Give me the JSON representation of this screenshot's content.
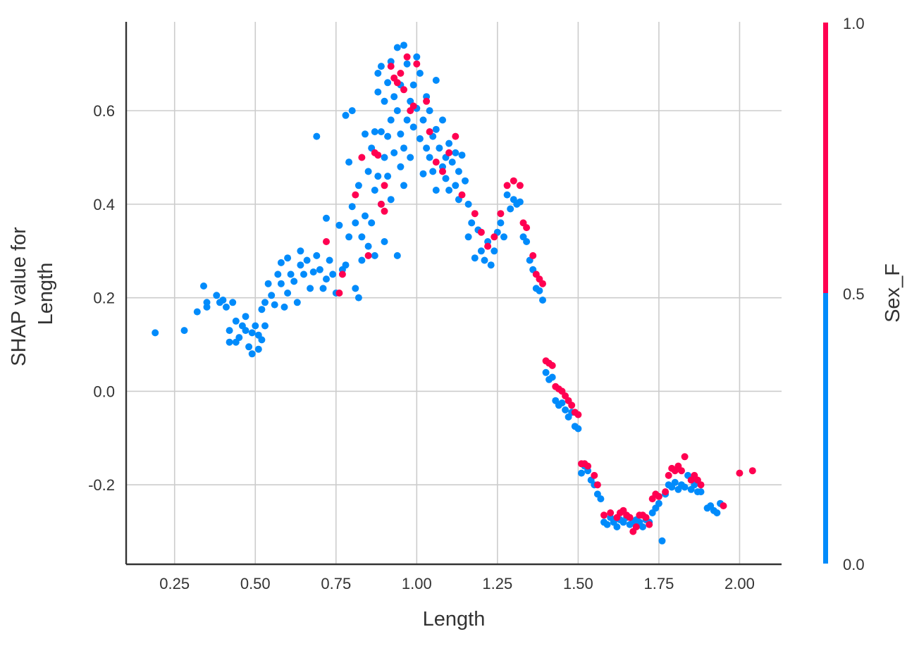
{
  "chart_data": {
    "type": "scatter",
    "title": "",
    "xlabel": "Length",
    "ylabel_lines": [
      "SHAP value for",
      "Length"
    ],
    "xlim": [
      0.1,
      2.13
    ],
    "ylim": [
      -0.37,
      0.79
    ],
    "x_ticks": [
      0.25,
      0.5,
      0.75,
      1.0,
      1.25,
      1.5,
      1.75,
      2.0
    ],
    "x_tick_labels": [
      "0.25",
      "0.50",
      "0.75",
      "1.00",
      "1.25",
      "1.50",
      "1.75",
      "2.00"
    ],
    "y_ticks": [
      0.6,
      0.4,
      0.2,
      0.0,
      -0.2
    ],
    "y_tick_labels": [
      "0.6",
      "0.4",
      "0.2",
      "0.0",
      "-0.2"
    ],
    "grid": true,
    "colorbar": {
      "label": "Sex_F",
      "ticks": [
        "1.0",
        "0.5",
        "0.0"
      ],
      "low_color": "#008bfb",
      "high_color": "#ff0051"
    },
    "series": [
      {
        "color_value": 0,
        "color": "#008bfb",
        "points": [
          [
            0.19,
            0.125
          ],
          [
            0.28,
            0.13
          ],
          [
            0.32,
            0.17
          ],
          [
            0.34,
            0.225
          ],
          [
            0.35,
            0.19
          ],
          [
            0.35,
            0.18
          ],
          [
            0.38,
            0.205
          ],
          [
            0.39,
            0.19
          ],
          [
            0.4,
            0.195
          ],
          [
            0.41,
            0.18
          ],
          [
            0.42,
            0.13
          ],
          [
            0.42,
            0.105
          ],
          [
            0.43,
            0.19
          ],
          [
            0.44,
            0.105
          ],
          [
            0.44,
            0.15
          ],
          [
            0.45,
            0.115
          ],
          [
            0.46,
            0.14
          ],
          [
            0.47,
            0.13
          ],
          [
            0.47,
            0.16
          ],
          [
            0.48,
            0.095
          ],
          [
            0.49,
            0.125
          ],
          [
            0.49,
            0.08
          ],
          [
            0.5,
            0.14
          ],
          [
            0.51,
            0.09
          ],
          [
            0.51,
            0.12
          ],
          [
            0.52,
            0.11
          ],
          [
            0.52,
            0.175
          ],
          [
            0.53,
            0.14
          ],
          [
            0.53,
            0.19
          ],
          [
            0.54,
            0.23
          ],
          [
            0.55,
            0.205
          ],
          [
            0.56,
            0.185
          ],
          [
            0.57,
            0.25
          ],
          [
            0.58,
            0.23
          ],
          [
            0.58,
            0.275
          ],
          [
            0.59,
            0.18
          ],
          [
            0.6,
            0.21
          ],
          [
            0.6,
            0.285
          ],
          [
            0.61,
            0.25
          ],
          [
            0.62,
            0.235
          ],
          [
            0.63,
            0.19
          ],
          [
            0.64,
            0.27
          ],
          [
            0.64,
            0.3
          ],
          [
            0.65,
            0.25
          ],
          [
            0.66,
            0.28
          ],
          [
            0.67,
            0.22
          ],
          [
            0.68,
            0.255
          ],
          [
            0.69,
            0.29
          ],
          [
            0.69,
            0.545
          ],
          [
            0.7,
            0.26
          ],
          [
            0.71,
            0.22
          ],
          [
            0.72,
            0.24
          ],
          [
            0.72,
            0.37
          ],
          [
            0.73,
            0.28
          ],
          [
            0.74,
            0.25
          ],
          [
            0.75,
            0.21
          ],
          [
            0.76,
            0.355
          ],
          [
            0.77,
            0.26
          ],
          [
            0.78,
            0.27
          ],
          [
            0.78,
            0.59
          ],
          [
            0.79,
            0.33
          ],
          [
            0.79,
            0.49
          ],
          [
            0.8,
            0.395
          ],
          [
            0.8,
            0.6
          ],
          [
            0.81,
            0.22
          ],
          [
            0.81,
            0.36
          ],
          [
            0.82,
            0.44
          ],
          [
            0.82,
            0.2
          ],
          [
            0.83,
            0.33
          ],
          [
            0.83,
            0.28
          ],
          [
            0.84,
            0.55
          ],
          [
            0.84,
            0.375
          ],
          [
            0.85,
            0.47
          ],
          [
            0.85,
            0.31
          ],
          [
            0.86,
            0.52
          ],
          [
            0.86,
            0.36
          ],
          [
            0.87,
            0.43
          ],
          [
            0.87,
            0.555
          ],
          [
            0.87,
            0.29
          ],
          [
            0.88,
            0.64
          ],
          [
            0.88,
            0.68
          ],
          [
            0.88,
            0.46
          ],
          [
            0.89,
            0.4
          ],
          [
            0.89,
            0.555
          ],
          [
            0.89,
            0.695
          ],
          [
            0.9,
            0.62
          ],
          [
            0.9,
            0.5
          ],
          [
            0.9,
            0.32
          ],
          [
            0.91,
            0.545
          ],
          [
            0.91,
            0.66
          ],
          [
            0.91,
            0.46
          ],
          [
            0.92,
            0.58
          ],
          [
            0.92,
            0.705
          ],
          [
            0.92,
            0.41
          ],
          [
            0.93,
            0.51
          ],
          [
            0.93,
            0.63
          ],
          [
            0.94,
            0.6
          ],
          [
            0.94,
            0.29
          ],
          [
            0.94,
            0.735
          ],
          [
            0.95,
            0.48
          ],
          [
            0.95,
            0.55
          ],
          [
            0.95,
            0.655
          ],
          [
            0.96,
            0.74
          ],
          [
            0.96,
            0.52
          ],
          [
            0.96,
            0.44
          ],
          [
            0.97,
            0.58
          ],
          [
            0.97,
            0.7
          ],
          [
            0.98,
            0.62
          ],
          [
            0.98,
            0.5
          ],
          [
            0.99,
            0.655
          ],
          [
            0.99,
            0.565
          ],
          [
            1.0,
            0.605
          ],
          [
            1.0,
            0.715
          ],
          [
            1.01,
            0.54
          ],
          [
            1.01,
            0.68
          ],
          [
            1.02,
            0.58
          ],
          [
            1.02,
            0.465
          ],
          [
            1.03,
            0.63
          ],
          [
            1.03,
            0.52
          ],
          [
            1.04,
            0.6
          ],
          [
            1.04,
            0.5
          ],
          [
            1.05,
            0.545
          ],
          [
            1.05,
            0.47
          ],
          [
            1.06,
            0.665
          ],
          [
            1.06,
            0.56
          ],
          [
            1.06,
            0.43
          ],
          [
            1.07,
            0.52
          ],
          [
            1.08,
            0.48
          ],
          [
            1.08,
            0.58
          ],
          [
            1.09,
            0.5
          ],
          [
            1.09,
            0.455
          ],
          [
            1.1,
            0.53
          ],
          [
            1.1,
            0.43
          ],
          [
            1.11,
            0.49
          ],
          [
            1.12,
            0.44
          ],
          [
            1.12,
            0.51
          ],
          [
            1.13,
            0.47
          ],
          [
            1.13,
            0.41
          ],
          [
            1.14,
            0.505
          ],
          [
            1.15,
            0.45
          ],
          [
            1.16,
            0.4
          ],
          [
            1.16,
            0.33
          ],
          [
            1.17,
            0.36
          ],
          [
            1.18,
            0.285
          ],
          [
            1.19,
            0.345
          ],
          [
            1.2,
            0.3
          ],
          [
            1.21,
            0.28
          ],
          [
            1.22,
            0.32
          ],
          [
            1.23,
            0.27
          ],
          [
            1.24,
            0.3
          ],
          [
            1.25,
            0.34
          ],
          [
            1.26,
            0.36
          ],
          [
            1.27,
            0.33
          ],
          [
            1.28,
            0.42
          ],
          [
            1.29,
            0.39
          ],
          [
            1.3,
            0.41
          ],
          [
            1.31,
            0.4
          ],
          [
            1.32,
            0.405
          ],
          [
            1.33,
            0.33
          ],
          [
            1.34,
            0.32
          ],
          [
            1.35,
            0.28
          ],
          [
            1.36,
            0.26
          ],
          [
            1.37,
            0.22
          ],
          [
            1.38,
            0.215
          ],
          [
            1.39,
            0.195
          ],
          [
            1.4,
            0.04
          ],
          [
            1.41,
            0.025
          ],
          [
            1.42,
            0.03
          ],
          [
            1.43,
            -0.02
          ],
          [
            1.44,
            -0.03
          ],
          [
            1.45,
            -0.025
          ],
          [
            1.46,
            -0.04
          ],
          [
            1.47,
            -0.055
          ],
          [
            1.48,
            -0.045
          ],
          [
            1.49,
            -0.075
          ],
          [
            1.5,
            -0.08
          ],
          [
            1.51,
            -0.175
          ],
          [
            1.52,
            -0.16
          ],
          [
            1.53,
            -0.17
          ],
          [
            1.54,
            -0.19
          ],
          [
            1.55,
            -0.2
          ],
          [
            1.56,
            -0.22
          ],
          [
            1.57,
            -0.23
          ],
          [
            1.58,
            -0.28
          ],
          [
            1.59,
            -0.285
          ],
          [
            1.6,
            -0.27
          ],
          [
            1.61,
            -0.28
          ],
          [
            1.62,
            -0.29
          ],
          [
            1.63,
            -0.275
          ],
          [
            1.64,
            -0.28
          ],
          [
            1.65,
            -0.27
          ],
          [
            1.66,
            -0.285
          ],
          [
            1.67,
            -0.28
          ],
          [
            1.68,
            -0.275
          ],
          [
            1.69,
            -0.28
          ],
          [
            1.7,
            -0.29
          ],
          [
            1.71,
            -0.275
          ],
          [
            1.72,
            -0.28
          ],
          [
            1.73,
            -0.26
          ],
          [
            1.74,
            -0.25
          ],
          [
            1.75,
            -0.24
          ],
          [
            1.76,
            -0.32
          ],
          [
            1.77,
            -0.22
          ],
          [
            1.78,
            -0.2
          ],
          [
            1.79,
            -0.205
          ],
          [
            1.8,
            -0.195
          ],
          [
            1.81,
            -0.21
          ],
          [
            1.82,
            -0.2
          ],
          [
            1.83,
            -0.205
          ],
          [
            1.84,
            -0.18
          ],
          [
            1.85,
            -0.21
          ],
          [
            1.86,
            -0.2
          ],
          [
            1.87,
            -0.215
          ],
          [
            1.88,
            -0.215
          ],
          [
            1.9,
            -0.25
          ],
          [
            1.91,
            -0.245
          ],
          [
            1.92,
            -0.255
          ],
          [
            1.93,
            -0.26
          ],
          [
            1.94,
            -0.24
          ]
        ]
      },
      {
        "color_value": 1,
        "color": "#ff0051",
        "points": [
          [
            0.72,
            0.32
          ],
          [
            0.76,
            0.21
          ],
          [
            0.77,
            0.25
          ],
          [
            0.81,
            0.42
          ],
          [
            0.83,
            0.5
          ],
          [
            0.85,
            0.29
          ],
          [
            0.87,
            0.51
          ],
          [
            0.88,
            0.505
          ],
          [
            0.89,
            0.4
          ],
          [
            0.9,
            0.44
          ],
          [
            0.9,
            0.385
          ],
          [
            0.92,
            0.695
          ],
          [
            0.93,
            0.67
          ],
          [
            0.94,
            0.66
          ],
          [
            0.95,
            0.68
          ],
          [
            0.96,
            0.645
          ],
          [
            0.97,
            0.715
          ],
          [
            0.98,
            0.6
          ],
          [
            0.99,
            0.61
          ],
          [
            1.0,
            0.7
          ],
          [
            1.03,
            0.62
          ],
          [
            1.04,
            0.555
          ],
          [
            1.06,
            0.49
          ],
          [
            1.08,
            0.47
          ],
          [
            1.1,
            0.51
          ],
          [
            1.12,
            0.545
          ],
          [
            1.14,
            0.42
          ],
          [
            1.18,
            0.38
          ],
          [
            1.2,
            0.34
          ],
          [
            1.22,
            0.31
          ],
          [
            1.24,
            0.33
          ],
          [
            1.26,
            0.38
          ],
          [
            1.28,
            0.44
          ],
          [
            1.3,
            0.45
          ],
          [
            1.32,
            0.44
          ],
          [
            1.33,
            0.36
          ],
          [
            1.34,
            0.35
          ],
          [
            1.36,
            0.29
          ],
          [
            1.37,
            0.25
          ],
          [
            1.38,
            0.24
          ],
          [
            1.39,
            0.23
          ],
          [
            1.4,
            0.065
          ],
          [
            1.41,
            0.06
          ],
          [
            1.42,
            0.055
          ],
          [
            1.43,
            0.01
          ],
          [
            1.44,
            0.005
          ],
          [
            1.45,
            0.0
          ],
          [
            1.46,
            -0.01
          ],
          [
            1.47,
            -0.02
          ],
          [
            1.48,
            -0.03
          ],
          [
            1.49,
            -0.045
          ],
          [
            1.5,
            -0.05
          ],
          [
            1.51,
            -0.155
          ],
          [
            1.52,
            -0.155
          ],
          [
            1.53,
            -0.16
          ],
          [
            1.55,
            -0.18
          ],
          [
            1.56,
            -0.2
          ],
          [
            1.58,
            -0.265
          ],
          [
            1.6,
            -0.26
          ],
          [
            1.62,
            -0.27
          ],
          [
            1.63,
            -0.26
          ],
          [
            1.64,
            -0.255
          ],
          [
            1.65,
            -0.265
          ],
          [
            1.66,
            -0.27
          ],
          [
            1.67,
            -0.3
          ],
          [
            1.68,
            -0.29
          ],
          [
            1.69,
            -0.265
          ],
          [
            1.7,
            -0.265
          ],
          [
            1.71,
            -0.27
          ],
          [
            1.72,
            -0.285
          ],
          [
            1.73,
            -0.23
          ],
          [
            1.74,
            -0.22
          ],
          [
            1.75,
            -0.225
          ],
          [
            1.77,
            -0.215
          ],
          [
            1.78,
            -0.18
          ],
          [
            1.79,
            -0.165
          ],
          [
            1.8,
            -0.17
          ],
          [
            1.81,
            -0.16
          ],
          [
            1.82,
            -0.17
          ],
          [
            1.83,
            -0.14
          ],
          [
            1.85,
            -0.19
          ],
          [
            1.86,
            -0.18
          ],
          [
            1.87,
            -0.19
          ],
          [
            1.88,
            -0.2
          ],
          [
            1.95,
            -0.245
          ],
          [
            2.0,
            -0.175
          ],
          [
            2.04,
            -0.17
          ]
        ]
      }
    ]
  }
}
